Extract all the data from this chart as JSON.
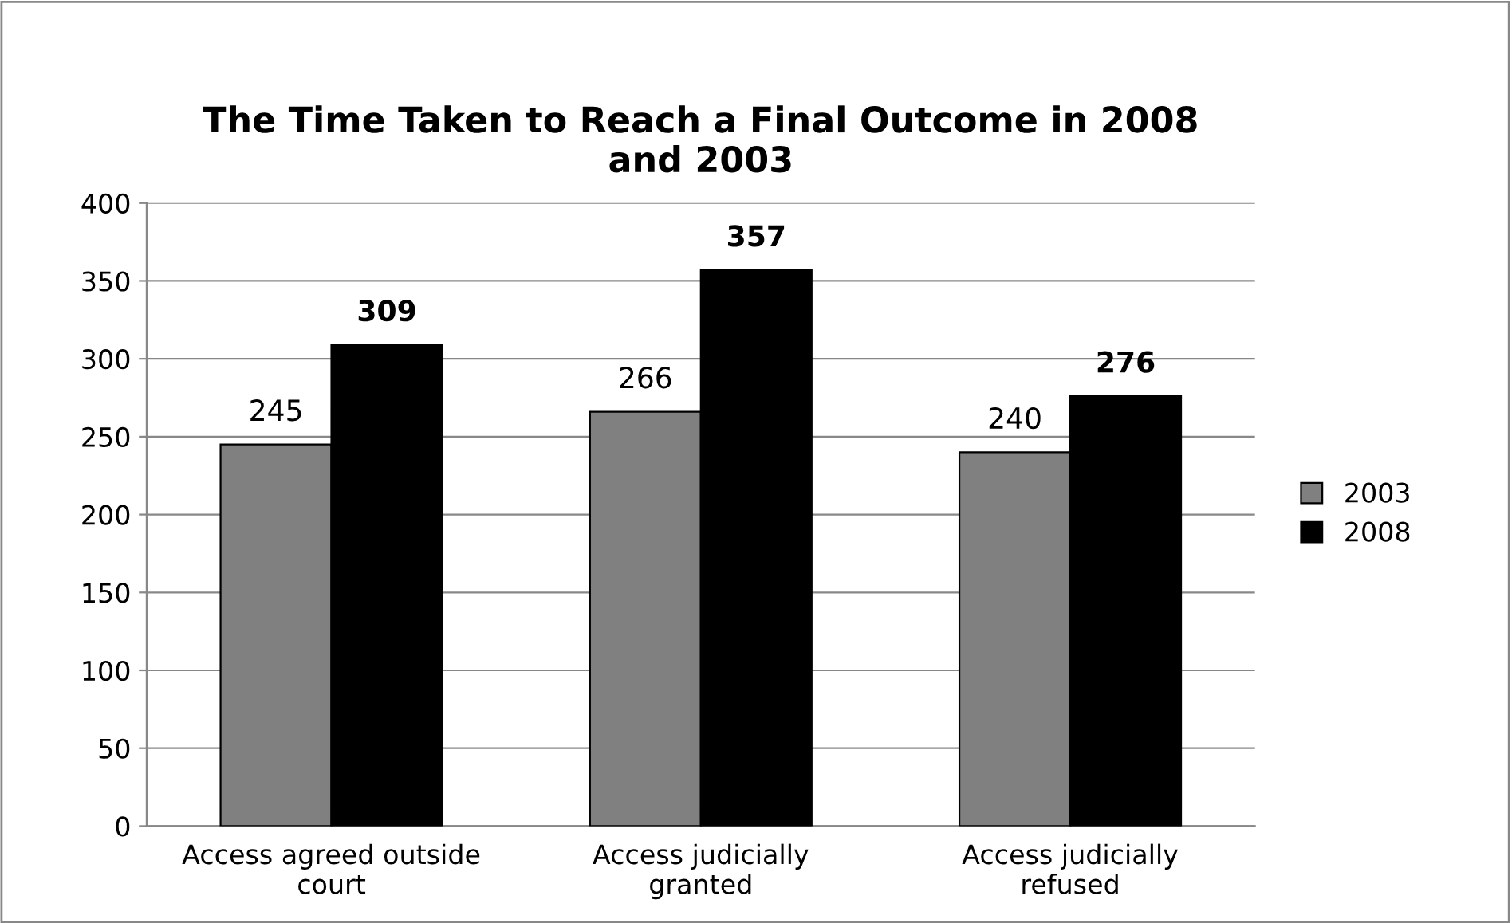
{
  "chart_data": {
    "type": "bar",
    "title": "The Time Taken to Reach a Final Outcome in 2008\nand 2003",
    "categories": [
      "Access agreed outside\ncourt",
      "Access judicially\ngranted",
      "Access judicially\nrefused"
    ],
    "series": [
      {
        "name": "2003",
        "color": "#808080",
        "values": [
          245,
          266,
          240
        ]
      },
      {
        "name": "2008",
        "color": "#000000",
        "values": [
          309,
          357,
          276
        ]
      }
    ],
    "ylim": [
      0,
      400
    ],
    "yticks": [
      0,
      50,
      100,
      150,
      200,
      250,
      300,
      350,
      400
    ],
    "grid": "y",
    "legend": "right",
    "data_labels": true
  }
}
